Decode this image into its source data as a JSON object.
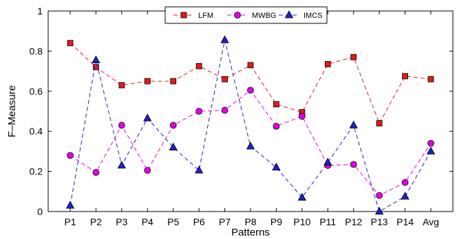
{
  "chart_data": {
    "type": "line",
    "title": "",
    "xlabel": "Patterns",
    "ylabel": "F–Measure",
    "categories": [
      "P1",
      "P2",
      "P3",
      "P4",
      "P5",
      "P6",
      "P7",
      "P8",
      "P9",
      "P10",
      "P11",
      "P12",
      "P13",
      "P14",
      "Avg"
    ],
    "ylim": [
      0,
      1
    ],
    "yticks": [
      0,
      0.2,
      0.4,
      0.6,
      0.8,
      1
    ],
    "ytick_labels": [
      "0",
      "0.2",
      "0.4",
      "0.6",
      "0.8",
      "1"
    ],
    "grid": false,
    "legend_position": "top-center",
    "series": [
      {
        "name": "LFM",
        "color": "#e31a1c",
        "marker": "square",
        "line_style": "dashed",
        "values": [
          0.84,
          0.72,
          0.63,
          0.65,
          0.65,
          0.725,
          0.66,
          0.73,
          0.535,
          0.495,
          0.735,
          0.77,
          0.44,
          0.675,
          0.66
        ]
      },
      {
        "name": "MWBG",
        "color": "#e600e6",
        "marker": "circle",
        "line_style": "dashed",
        "values": [
          0.28,
          0.195,
          0.43,
          0.205,
          0.43,
          0.5,
          0.505,
          0.605,
          0.425,
          0.475,
          0.23,
          0.235,
          0.08,
          0.145,
          0.34
        ]
      },
      {
        "name": "IMCS",
        "color": "#1f1fcc",
        "marker": "triangle",
        "line_style": "dashed",
        "values": [
          0.03,
          0.755,
          0.23,
          0.465,
          0.32,
          0.205,
          0.855,
          0.325,
          0.22,
          0.07,
          0.245,
          0.43,
          0.0,
          0.075,
          0.3
        ]
      }
    ]
  }
}
